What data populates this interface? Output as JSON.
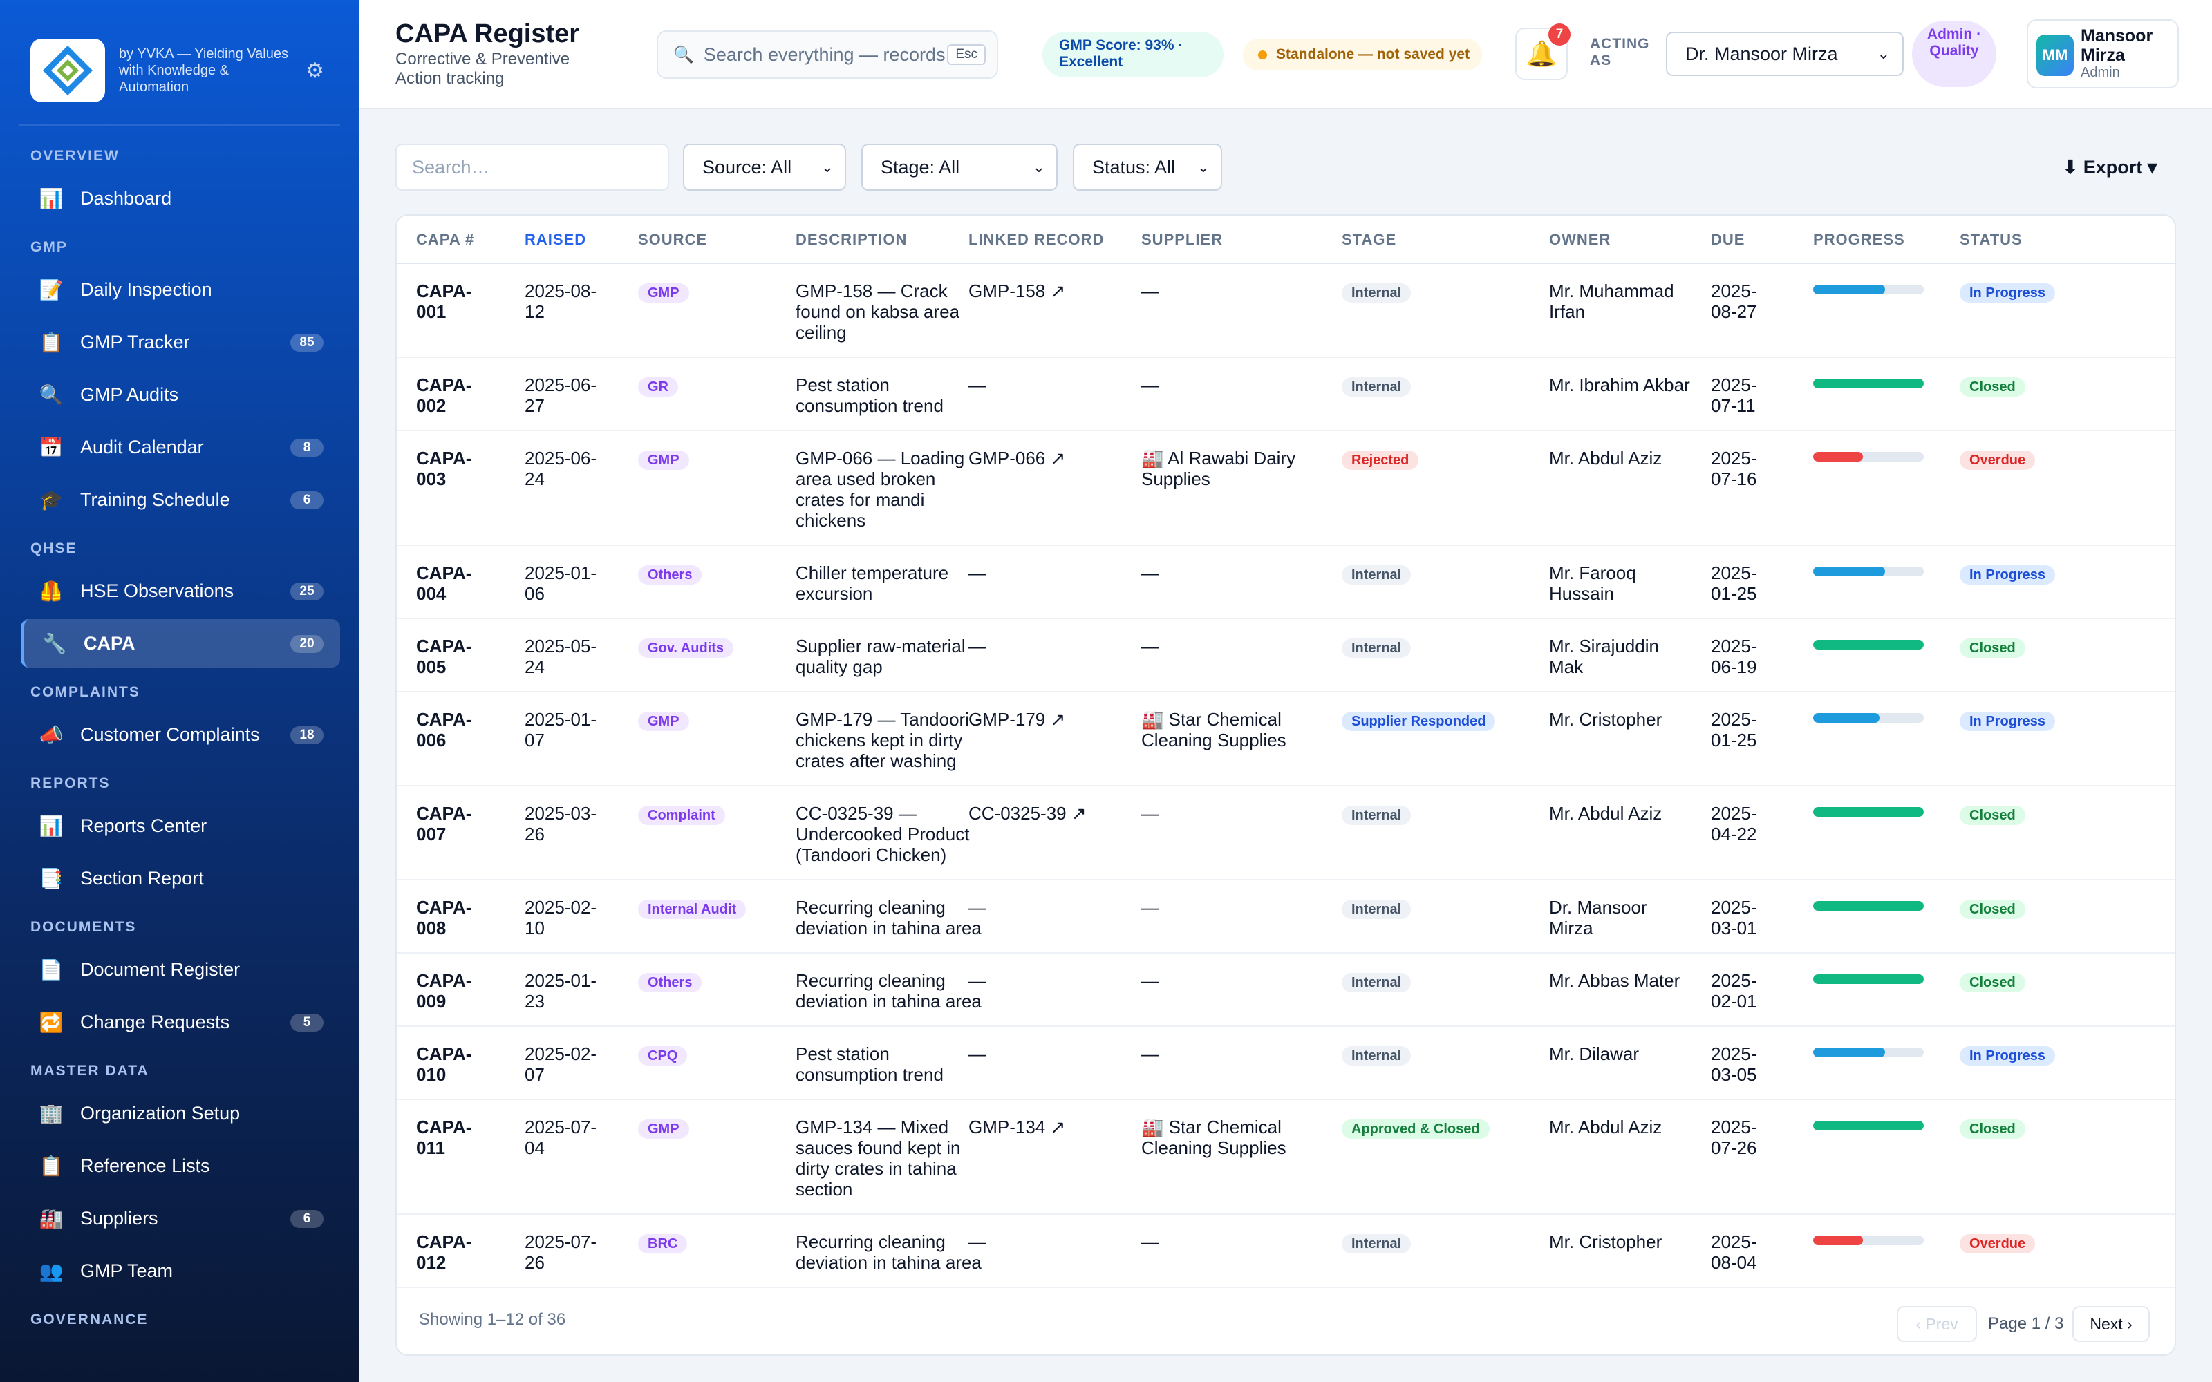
{
  "brand": {
    "tagline": "by YVKA — Yielding Values with Knowledge & Automation"
  },
  "nav": {
    "sections": [
      {
        "label": "OVERVIEW",
        "items": [
          {
            "label": "Dashboard",
            "icon": "📊",
            "name": "dashboard"
          }
        ]
      },
      {
        "label": "GMP",
        "items": [
          {
            "label": "Daily Inspection",
            "icon": "📝",
            "name": "daily-inspection"
          },
          {
            "label": "GMP Tracker",
            "icon": "📋",
            "badge": "85",
            "name": "gmp-tracker"
          },
          {
            "label": "GMP Audits",
            "icon": "🔍",
            "name": "gmp-audits"
          },
          {
            "label": "Audit Calendar",
            "icon": "📅",
            "badge": "8",
            "name": "audit-calendar"
          },
          {
            "label": "Training Schedule",
            "icon": "🎓",
            "badge": "6",
            "name": "training-schedule"
          }
        ]
      },
      {
        "label": "QHSE",
        "items": [
          {
            "label": "HSE Observations",
            "icon": "🦺",
            "badge": "25",
            "name": "hse-observations"
          },
          {
            "label": "CAPA",
            "icon": "🔧",
            "badge": "20",
            "name": "capa",
            "active": true
          }
        ]
      },
      {
        "label": "COMPLAINTS",
        "items": [
          {
            "label": "Customer Complaints",
            "icon": "📣",
            "badge": "18",
            "name": "customer-complaints"
          }
        ]
      },
      {
        "label": "REPORTS",
        "items": [
          {
            "label": "Reports Center",
            "icon": "📊",
            "name": "reports-center"
          },
          {
            "label": "Section Report",
            "icon": "📑",
            "name": "section-report"
          }
        ]
      },
      {
        "label": "DOCUMENTS",
        "items": [
          {
            "label": "Document Register",
            "icon": "📄",
            "name": "document-register"
          },
          {
            "label": "Change Requests",
            "icon": "🔁",
            "badge": "5",
            "name": "change-requests"
          }
        ]
      },
      {
        "label": "MASTER DATA",
        "items": [
          {
            "label": "Organization Setup",
            "icon": "🏢",
            "name": "organization-setup"
          },
          {
            "label": "Reference Lists",
            "icon": "📋",
            "name": "reference-lists"
          },
          {
            "label": "Suppliers",
            "icon": "🏭",
            "badge": "6",
            "name": "suppliers"
          },
          {
            "label": "GMP Team",
            "icon": "👥",
            "name": "gmp-team"
          }
        ]
      },
      {
        "label": "GOVERNANCE",
        "items": []
      }
    ]
  },
  "header": {
    "title": "CAPA Register",
    "subtitle": "Corrective & Preventive Action tracking",
    "search_placeholder": "Search everything — records",
    "search_kbd": "Esc",
    "gmp_score": "GMP Score: 93% · Excellent",
    "standalone": "Standalone — not saved yet",
    "notif_count": "7",
    "acting_label": "ACTING AS",
    "acting_value": "Dr. Mansoor Mirza",
    "role": "Admin · Quality",
    "user_initials": "MM",
    "user_name": "Mansoor Mirza",
    "user_role": "Admin"
  },
  "filters": {
    "search_placeholder": "Search…",
    "source": "Source: All",
    "stage": "Stage: All",
    "status": "Status: All",
    "export": "⬇ Export ▾"
  },
  "table": {
    "columns": [
      "CAPA #",
      "RAISED",
      "SOURCE",
      "DESCRIPTION",
      "LINKED RECORD",
      "SUPPLIER",
      "STAGE",
      "OWNER",
      "DUE",
      "PROGRESS",
      "STATUS"
    ],
    "rows": [
      {
        "id": "CAPA-001",
        "raised": "2025-08-12",
        "source": "GMP",
        "description": "GMP-158 — Crack found on kabsa area ceiling",
        "linked": "GMP-158 ↗",
        "supplier": "—",
        "stage": "Internal",
        "stage_kind": "internal",
        "owner": "Mr. Muhammad Irfan",
        "due": "2025-08-27",
        "progress": 65,
        "progress_color": "#1e9bdc",
        "status": "In Progress",
        "status_kind": "progress",
        "lines": 3
      },
      {
        "id": "CAPA-002",
        "raised": "2025-06-27",
        "source": "GR",
        "description": "Pest station consumption trend",
        "linked": "—",
        "supplier": "—",
        "stage": "Internal",
        "stage_kind": "internal",
        "owner": "Mr. Ibrahim Akbar",
        "due": "2025-07-11",
        "progress": 100,
        "progress_color": "#10b981",
        "status": "Closed",
        "status_kind": "closed",
        "lines": 2
      },
      {
        "id": "CAPA-003",
        "raised": "2025-06-24",
        "source": "GMP",
        "description": "GMP-066 — Loading area used broken crates for mandi chickens",
        "linked": "GMP-066 ↗",
        "supplier": "🏭 Al Rawabi Dairy Supplies",
        "stage": "Rejected",
        "stage_kind": "rejected",
        "owner": "Mr. Abdul Aziz",
        "due": "2025-07-16",
        "progress": 45,
        "progress_color": "#ef4444",
        "status": "Overdue",
        "status_kind": "overdue",
        "lines": 4
      },
      {
        "id": "CAPA-004",
        "raised": "2025-01-06",
        "source": "Others",
        "description": "Chiller temperature excursion",
        "linked": "—",
        "supplier": "—",
        "stage": "Internal",
        "stage_kind": "internal",
        "owner": "Mr. Farooq Hussain",
        "due": "2025-01-25",
        "progress": 65,
        "progress_color": "#1e9bdc",
        "status": "In Progress",
        "status_kind": "progress",
        "lines": 2
      },
      {
        "id": "CAPA-005",
        "raised": "2025-05-24",
        "source": "Gov. Audits",
        "description": "Supplier raw-material quality gap",
        "linked": "—",
        "supplier": "—",
        "stage": "Internal",
        "stage_kind": "internal",
        "owner": "Mr. Sirajuddin Mak",
        "due": "2025-06-19",
        "progress": 100,
        "progress_color": "#10b981",
        "status": "Closed",
        "status_kind": "closed",
        "lines": 2
      },
      {
        "id": "CAPA-006",
        "raised": "2025-01-07",
        "source": "GMP",
        "description": "GMP-179 — Tandoori chickens kept in dirty crates after washing",
        "linked": "GMP-179 ↗",
        "supplier": "🏭 Star Chemical Cleaning Supplies",
        "stage": "Supplier Responded",
        "stage_kind": "responded",
        "owner": "Mr. Cristopher",
        "due": "2025-01-25",
        "progress": 60,
        "progress_color": "#1e9bdc",
        "status": "In Progress",
        "status_kind": "progress",
        "lines": 3
      },
      {
        "id": "CAPA-007",
        "raised": "2025-03-26",
        "source": "Complaint",
        "description": "CC-0325-39 — Undercooked Product (Tandoori Chicken)",
        "linked": "CC-0325-39 ↗",
        "supplier": "—",
        "stage": "Internal",
        "stage_kind": "internal",
        "owner": "Mr. Abdul Aziz",
        "due": "2025-04-22",
        "progress": 100,
        "progress_color": "#10b981",
        "status": "Closed",
        "status_kind": "closed",
        "lines": 3
      },
      {
        "id": "CAPA-008",
        "raised": "2025-02-10",
        "source": "Internal Audit",
        "description": "Recurring cleaning deviation in tahina area",
        "linked": "—",
        "supplier": "—",
        "stage": "Internal",
        "stage_kind": "internal",
        "owner": "Dr. Mansoor Mirza",
        "due": "2025-03-01",
        "progress": 100,
        "progress_color": "#10b981",
        "status": "Closed",
        "status_kind": "closed",
        "lines": 2
      },
      {
        "id": "CAPA-009",
        "raised": "2025-01-23",
        "source": "Others",
        "description": "Recurring cleaning deviation in tahina area",
        "linked": "—",
        "supplier": "—",
        "stage": "Internal",
        "stage_kind": "internal",
        "owner": "Mr. Abbas Mater",
        "due": "2025-02-01",
        "progress": 100,
        "progress_color": "#10b981",
        "status": "Closed",
        "status_kind": "closed",
        "lines": 2
      },
      {
        "id": "CAPA-010",
        "raised": "2025-02-07",
        "source": "CPQ",
        "description": "Pest station consumption trend",
        "linked": "—",
        "supplier": "—",
        "stage": "Internal",
        "stage_kind": "internal",
        "owner": "Mr. Dilawar",
        "due": "2025-03-05",
        "progress": 65,
        "progress_color": "#1e9bdc",
        "status": "In Progress",
        "status_kind": "progress",
        "lines": 2
      },
      {
        "id": "CAPA-011",
        "raised": "2025-07-04",
        "source": "GMP",
        "description": "GMP-134 — Mixed sauces found kept in dirty crates in tahina section",
        "linked": "GMP-134 ↗",
        "supplier": "🏭 Star Chemical Cleaning Supplies",
        "stage": "Approved & Closed",
        "stage_kind": "approved",
        "owner": "Mr. Abdul Aziz",
        "due": "2025-07-26",
        "progress": 100,
        "progress_color": "#10b981",
        "status": "Closed",
        "status_kind": "closed",
        "lines": 4
      },
      {
        "id": "CAPA-012",
        "raised": "2025-07-26",
        "source": "BRC",
        "description": "Recurring cleaning deviation in tahina area",
        "linked": "—",
        "supplier": "—",
        "stage": "Internal",
        "stage_kind": "internal",
        "owner": "Mr. Cristopher",
        "due": "2025-08-04",
        "progress": 45,
        "progress_color": "#ef4444",
        "status": "Overdue",
        "status_kind": "overdue",
        "lines": 2
      }
    ]
  },
  "pagination": {
    "showing": "Showing 1–12 of 36",
    "prev": "‹ Prev",
    "page": "Page 1 / 3",
    "next": "Next ›"
  }
}
